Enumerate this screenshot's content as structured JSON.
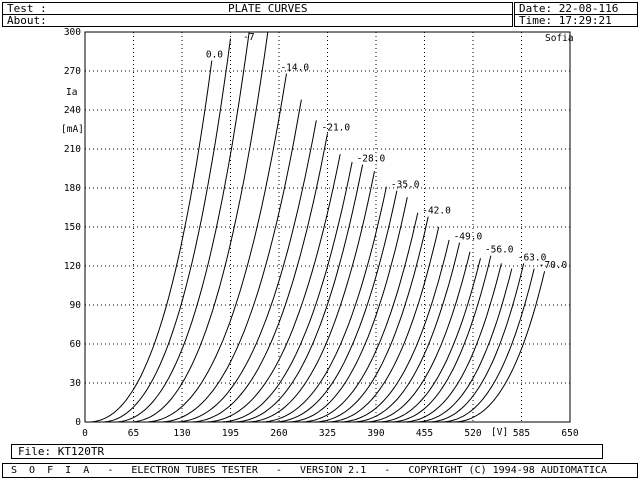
{
  "header": {
    "test_label": "Test :",
    "about_label": "About:",
    "title": "PLATE CURVES",
    "date_text": "Date: 22-08-116",
    "time_text": "Time: 17:29:21"
  },
  "file_bar": {
    "label": "File: KT120TR"
  },
  "footer": {
    "text": "S  O  F  I  A   -   ELECTRON TUBES TESTER   -   VERSION 2.1   -   COPYRIGHT (C) 1994-98 AUDIOMATICA"
  },
  "chart_data": {
    "type": "line",
    "watermark": "Sofia",
    "ylabel": "Ia",
    "yunit": "[mA]",
    "xunit": "[V]",
    "xlim": [
      0,
      650
    ],
    "ylim": [
      0,
      300
    ],
    "xticks": [
      0,
      65,
      130,
      195,
      260,
      325,
      390,
      455,
      520,
      585,
      650
    ],
    "yticks": [
      0,
      30,
      60,
      90,
      120,
      150,
      180,
      210,
      240,
      270,
      300
    ],
    "grid": true,
    "series": [
      {
        "name": "0.0",
        "x0": 5,
        "xend": 170,
        "yend": 278,
        "labeled": true
      },
      {
        "name": "",
        "x0": 22,
        "xend": 195,
        "yend": 295,
        "labeled": false
      },
      {
        "name": "-7",
        "x0": 40,
        "xend": 220,
        "yend": 300,
        "labeled": true
      },
      {
        "name": "",
        "x0": 60,
        "xend": 245,
        "yend": 300,
        "labeled": false
      },
      {
        "name": "-14.0",
        "x0": 80,
        "xend": 270,
        "yend": 268,
        "labeled": true
      },
      {
        "name": "",
        "x0": 100,
        "xend": 290,
        "yend": 248,
        "labeled": false
      },
      {
        "name": "",
        "x0": 120,
        "xend": 310,
        "yend": 232,
        "labeled": false
      },
      {
        "name": "-21.0",
        "x0": 140,
        "xend": 325,
        "yend": 222,
        "labeled": true
      },
      {
        "name": "",
        "x0": 160,
        "xend": 342,
        "yend": 206,
        "labeled": false
      },
      {
        "name": "",
        "x0": 180,
        "xend": 358,
        "yend": 200,
        "labeled": false
      },
      {
        "name": "-28.0",
        "x0": 198,
        "xend": 372,
        "yend": 198,
        "labeled": true
      },
      {
        "name": "",
        "x0": 216,
        "xend": 388,
        "yend": 193,
        "labeled": false
      },
      {
        "name": "",
        "x0": 234,
        "xend": 404,
        "yend": 181,
        "labeled": false
      },
      {
        "name": "-35.0",
        "x0": 252,
        "xend": 418,
        "yend": 178,
        "labeled": true
      },
      {
        "name": "",
        "x0": 270,
        "xend": 432,
        "yend": 173,
        "labeled": false
      },
      {
        "name": "",
        "x0": 288,
        "xend": 446,
        "yend": 161,
        "labeled": false
      },
      {
        "name": "-42.0",
        "x0": 306,
        "xend": 460,
        "yend": 158,
        "labeled": true
      },
      {
        "name": "",
        "x0": 323,
        "xend": 474,
        "yend": 150,
        "labeled": false
      },
      {
        "name": "",
        "x0": 340,
        "xend": 488,
        "yend": 140,
        "labeled": false
      },
      {
        "name": "-49.0",
        "x0": 357,
        "xend": 502,
        "yend": 138,
        "labeled": true
      },
      {
        "name": "",
        "x0": 374,
        "xend": 516,
        "yend": 131,
        "labeled": false
      },
      {
        "name": "",
        "x0": 391,
        "xend": 530,
        "yend": 126,
        "labeled": false
      },
      {
        "name": "-56.0",
        "x0": 408,
        "xend": 544,
        "yend": 128,
        "labeled": true
      },
      {
        "name": "",
        "x0": 425,
        "xend": 558,
        "yend": 122,
        "labeled": false
      },
      {
        "name": "",
        "x0": 442,
        "xend": 572,
        "yend": 118,
        "labeled": false
      },
      {
        "name": "-63.0",
        "x0": 459,
        "xend": 588,
        "yend": 122,
        "labeled": true
      },
      {
        "name": "",
        "x0": 476,
        "xend": 602,
        "yend": 118,
        "labeled": false
      },
      {
        "name": "-70.0",
        "x0": 493,
        "xend": 616,
        "yend": 116,
        "labeled": true
      }
    ]
  }
}
